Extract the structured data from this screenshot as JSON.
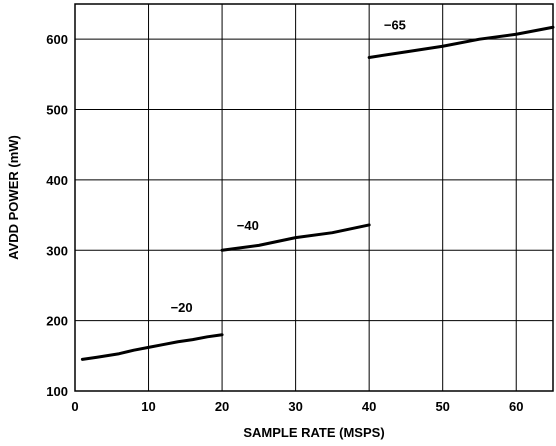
{
  "chart_data": {
    "type": "line",
    "xlabel": "SAMPLE RATE (MSPS)",
    "ylabel": "AVDD POWER (mW)",
    "xlim": [
      0,
      65
    ],
    "ylim": [
      100,
      650
    ],
    "xticks": [
      0,
      10,
      20,
      30,
      40,
      50,
      60
    ],
    "yticks": [
      100,
      200,
      300,
      400,
      500,
      600
    ],
    "grid": true,
    "series": [
      {
        "name": "−20",
        "x": [
          1,
          3,
          6,
          8,
          10,
          12,
          14,
          16,
          18,
          20
        ],
        "y": [
          145,
          148,
          153,
          158,
          162,
          166,
          170,
          173,
          177,
          180
        ]
      },
      {
        "name": "−40",
        "x": [
          20,
          25,
          30,
          35,
          40
        ],
        "y": [
          300,
          307,
          318,
          325,
          336
        ]
      },
      {
        "name": "−65",
        "x": [
          40,
          45,
          50,
          55,
          60,
          65
        ],
        "y": [
          574,
          582,
          590,
          600,
          607,
          617
        ]
      }
    ]
  }
}
